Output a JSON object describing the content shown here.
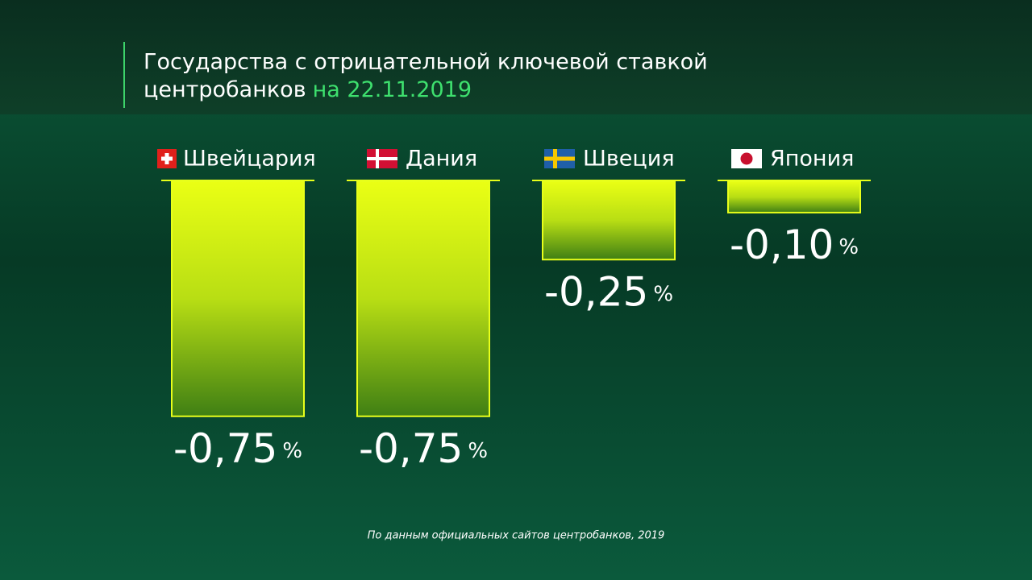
{
  "chart_data": {
    "type": "bar",
    "title": [
      "Государства с отрицательной ключевой ставкой",
      "центробанков"
    ],
    "title_date": "на 22.11.2019",
    "categories": [
      "Швейцария",
      "Дания",
      "Швеция",
      "Япония"
    ],
    "values": [
      -0.75,
      -0.75,
      -0.25,
      -0.1
    ],
    "value_labels": [
      "-0,75",
      "-0,75",
      "-0,25",
      "-0,10"
    ],
    "value_label_unit": "%",
    "color": "#e8ff1a",
    "source": "По данным официальных сайтов центробанков, 2019"
  }
}
